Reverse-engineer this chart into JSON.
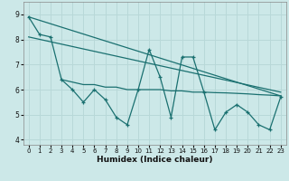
{
  "xlabel": "Humidex (Indice chaleur)",
  "bg_color": "#cce8e8",
  "line_color": "#1a7070",
  "grid_color": "#b8d8d8",
  "xlim": [
    -0.5,
    23.5
  ],
  "ylim": [
    3.8,
    9.5
  ],
  "yticks": [
    4,
    5,
    6,
    7,
    8,
    9
  ],
  "xticks": [
    0,
    1,
    2,
    3,
    4,
    5,
    6,
    7,
    8,
    9,
    10,
    11,
    12,
    13,
    14,
    15,
    16,
    17,
    18,
    19,
    20,
    21,
    22,
    23
  ],
  "series1_x": [
    0,
    1,
    2,
    3,
    4,
    5,
    6,
    7,
    8,
    9,
    10,
    11,
    12,
    13,
    14,
    15,
    16,
    17,
    18,
    19,
    20,
    21,
    22,
    23
  ],
  "series1_y": [
    8.9,
    8.2,
    8.1,
    6.4,
    6.0,
    5.5,
    6.0,
    5.6,
    4.9,
    4.6,
    6.0,
    7.6,
    6.5,
    4.9,
    7.3,
    7.3,
    5.9,
    4.4,
    5.1,
    5.4,
    5.1,
    4.6,
    4.4,
    5.7
  ],
  "series2_x": [
    3,
    4,
    5,
    6,
    7,
    8,
    9,
    10,
    11,
    12,
    13,
    14,
    15,
    16,
    17,
    18,
    19,
    20,
    21,
    22,
    23
  ],
  "series2_y": [
    6.4,
    6.3,
    6.2,
    6.2,
    6.1,
    6.1,
    6.0,
    6.0,
    6.0,
    6.0,
    5.95,
    5.95,
    5.9,
    5.9,
    5.88,
    5.87,
    5.85,
    5.83,
    5.8,
    5.78,
    5.75
  ],
  "series3_x": [
    0,
    23
  ],
  "series3_y": [
    8.9,
    5.75
  ],
  "series4_x": [
    0,
    23
  ],
  "series4_y": [
    8.1,
    5.9
  ]
}
